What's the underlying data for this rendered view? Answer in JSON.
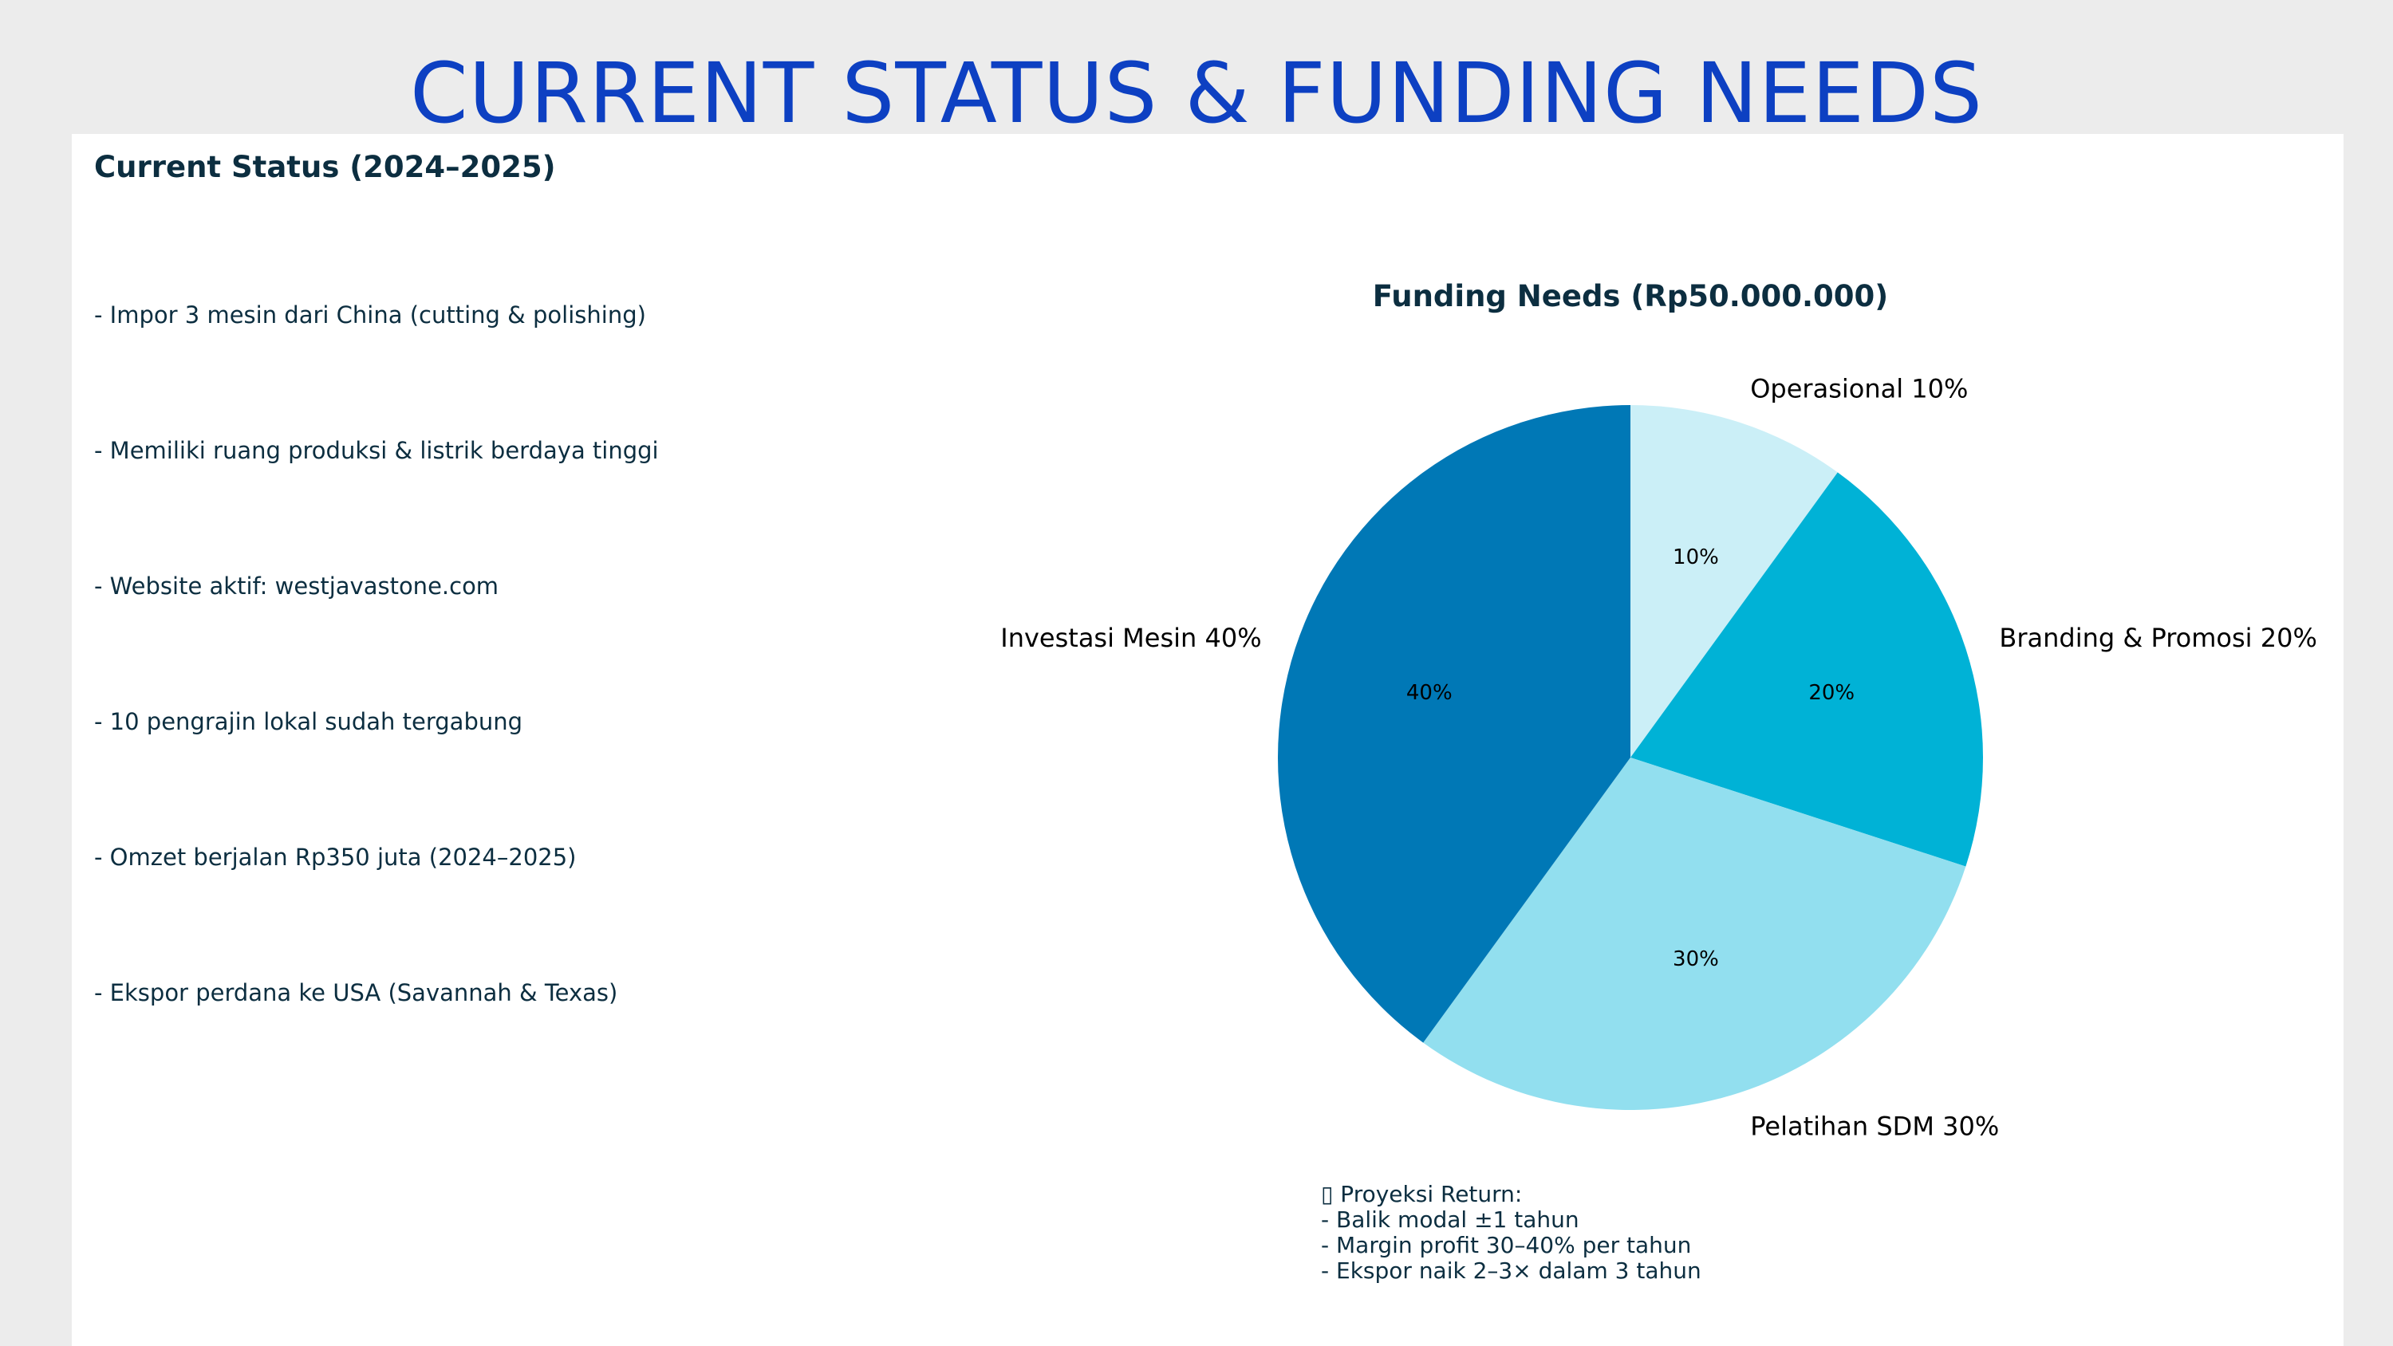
{
  "slide": {
    "title": "CURRENT STATUS & FUNDING NEEDS"
  },
  "status": {
    "heading": "Current Status (2024–2025)",
    "items": [
      "- Impor 3 mesin dari China (cutting & polishing)",
      "- Memiliki ruang produksi & listrik berdaya tinggi",
      "- Website aktif: westjavastone.com",
      "- 10 pengrajin lokal sudah tergabung",
      "- Omzet berjalan Rp350 juta (2024–2025)",
      "- Ekspor perdana ke USA (Savannah & Texas)"
    ]
  },
  "chart_data": {
    "type": "pie",
    "title": "Funding Needs (Rp50.000.000)",
    "start_angle_deg": 90,
    "direction": "clockwise",
    "slices": [
      {
        "label": "Operasional 10%",
        "value": 10,
        "pct_label": "10%",
        "color": "#cbeff7"
      },
      {
        "label": "Branding & Promosi 20%",
        "value": 20,
        "pct_label": "20%",
        "color": "#00b2d6"
      },
      {
        "label": "Pelatihan SDM 30%",
        "value": 30,
        "pct_label": "30%",
        "color": "#92dfef"
      },
      {
        "label": "Investasi Mesin 40%",
        "value": 40,
        "pct_label": "40%",
        "color": "#0078b6"
      }
    ]
  },
  "returns": {
    "icon": "chart-icon",
    "lines": [
      "▯ Proyeksi Return:",
      "- Balik modal ±1 tahun",
      "- Margin profit 30–40% per tahun",
      "- Ekspor naik 2–3× dalam 3 tahun"
    ]
  }
}
